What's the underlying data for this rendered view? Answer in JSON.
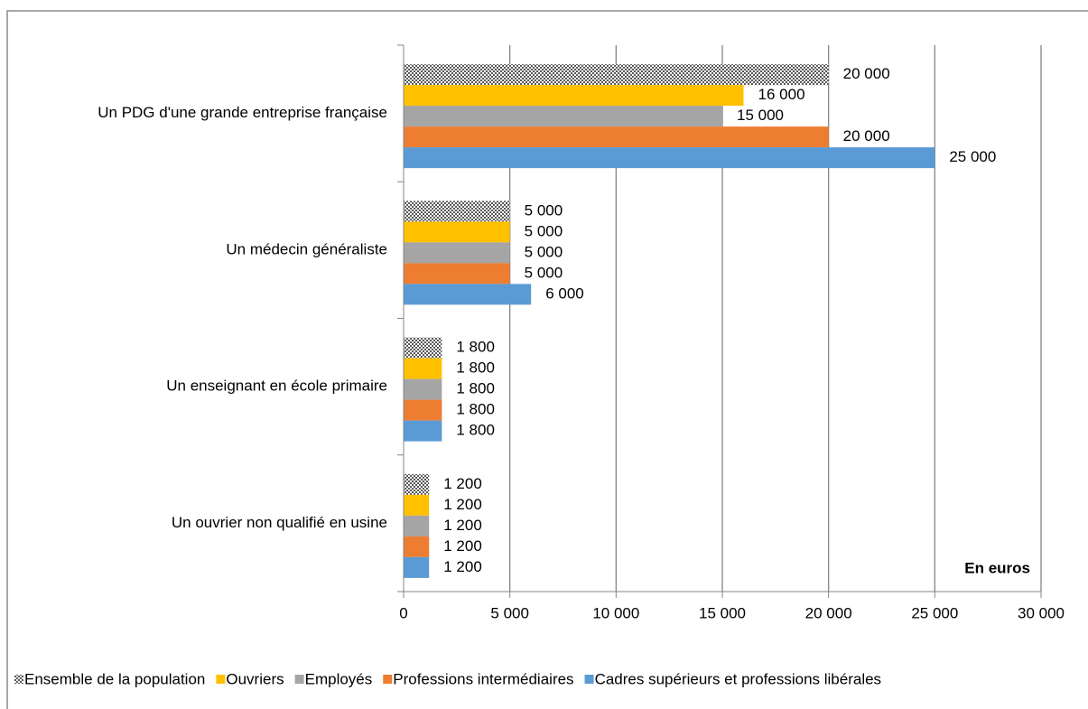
{
  "chart_data": {
    "type": "hbar",
    "categories": [
      "Un PDG d'une grande entreprise française",
      "Un médecin généraliste",
      "Un enseignant en école primaire",
      "Un ouvrier non qualifié en usine"
    ],
    "series": [
      {
        "name": "Ensemble de la population",
        "color": "#595959",
        "pattern": "checker",
        "values": [
          20000,
          5000,
          1800,
          1200
        ],
        "value_labels": [
          "20 000",
          "5 000",
          "1 800",
          "1 200"
        ]
      },
      {
        "name": "Ouvriers",
        "color": "#ffc000",
        "values": [
          16000,
          5000,
          1800,
          1200
        ],
        "value_labels": [
          "16 000",
          "5 000",
          "1 800",
          "1 200"
        ]
      },
      {
        "name": "Employés",
        "color": "#a5a5a5",
        "values": [
          15000,
          5000,
          1800,
          1200
        ],
        "value_labels": [
          "15 000",
          "5 000",
          "1 800",
          "1 200"
        ]
      },
      {
        "name": "Professions intermédiaires",
        "color": "#ed7d31",
        "values": [
          20000,
          5000,
          1800,
          1200
        ],
        "value_labels": [
          "20 000",
          "5 000",
          "1 800",
          "1 200"
        ]
      },
      {
        "name": "Cadres supérieurs et professions libérales",
        "color": "#5b9bd5",
        "values": [
          25000,
          6000,
          1800,
          1200
        ],
        "value_labels": [
          "25 000",
          "6 000",
          "1 800",
          "1 200"
        ]
      }
    ],
    "xlim": [
      0,
      30000
    ],
    "xticks": [
      0,
      {
        "value": 5000,
        "label": "5 000"
      },
      {
        "value": 10000,
        "label": "10 000"
      },
      {
        "value": 15000,
        "label": "15 000"
      },
      {
        "value": 20000,
        "label": "20 000"
      },
      {
        "value": 25000,
        "label": "25 000"
      },
      {
        "value": 30000,
        "label": "30 000"
      }
    ],
    "grid": true,
    "legend": "bottom",
    "annotation": "En euros"
  }
}
